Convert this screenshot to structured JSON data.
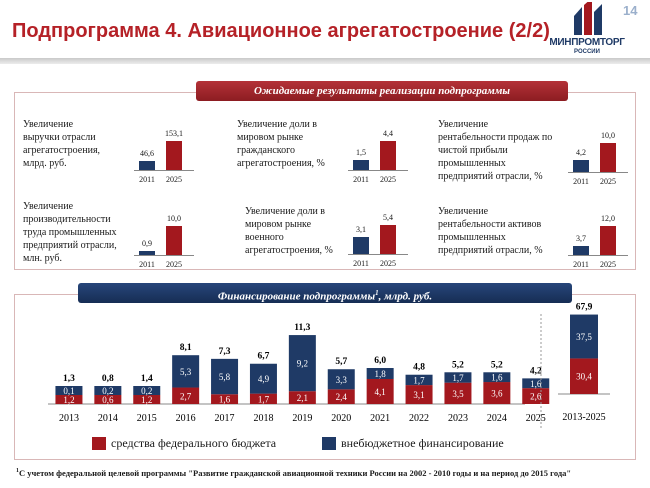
{
  "header": {
    "title": "Подпрограмма 4. Авиационное агрегатостроение (2/2)",
    "page_number": "14",
    "logo_name": "МИНПРОМТОРГ",
    "logo_sub": "РОССИИ"
  },
  "results": {
    "banner": "Ожидаемые результаты реализации подпрограммы",
    "indicators": [
      {
        "label_lines": [
          "Увеличение",
          "выручки отрасли",
          "агрегатостроения,",
          "млрд. руб."
        ],
        "values": [
          46.6,
          153.1
        ],
        "value_labels": [
          "46,6",
          "153,1"
        ],
        "years": [
          "2011",
          "2025"
        ]
      },
      {
        "label_lines": [
          "Увеличение доли в",
          "мировом рынке",
          "гражданского",
          "агрегатостроения, %"
        ],
        "values": [
          1.5,
          4.4
        ],
        "value_labels": [
          "1,5",
          "4,4"
        ],
        "years": [
          "2011",
          "2025"
        ]
      },
      {
        "label_lines": [
          "Увеличение",
          "рентабельности продаж по",
          "чистой прибыли",
          "промышленных",
          "предприятий отрасли, %"
        ],
        "values": [
          4.2,
          10.0
        ],
        "value_labels": [
          "4,2",
          "10,0"
        ],
        "years": [
          "2011",
          "2025"
        ]
      },
      {
        "label_lines": [
          "Увеличение",
          "производительности",
          "труда промышленных",
          "предприятий отрасли,",
          "млн. руб."
        ],
        "values": [
          0.9,
          10.0
        ],
        "value_labels": [
          "0,9",
          "10,0"
        ],
        "years": [
          "2011",
          "2025"
        ]
      },
      {
        "label_lines": [
          "Увеличение доли в",
          "мировом рынке",
          "военного",
          "агрегатостроения, %"
        ],
        "values": [
          3.1,
          5.4
        ],
        "value_labels": [
          "3,1",
          "5,4"
        ],
        "years": [
          "2011",
          "2025"
        ]
      },
      {
        "label_lines": [
          "Увеличение",
          "рентабельности активов",
          "промышленных",
          "предприятий отрасли, %"
        ],
        "values": [
          3.7,
          12.0
        ],
        "value_labels": [
          "3,7",
          "12,0"
        ],
        "years": [
          "2011",
          "2025"
        ]
      }
    ]
  },
  "financing": {
    "banner": "Финансирование подпрограммы",
    "banner_sup": "1",
    "banner_unit": ", млрд. руб."
  },
  "legend": {
    "federal": "средства федерального бюджета",
    "extra": "внебюджетное финансирование"
  },
  "footnote": {
    "sup": "1",
    "text": "С учетом федеральной целевой программы \"Развитие гражданской авиационной техники России на 2002 - 2010 годы и на период до 2015 года\""
  },
  "colors": {
    "federal": "#a3181e",
    "extra": "#1f3a66",
    "accent": "#b52127"
  },
  "chart_data": [
    {
      "type": "bar",
      "stacked": true,
      "categories": [
        "2013",
        "2014",
        "2015",
        "2016",
        "2017",
        "2018",
        "2019",
        "2020",
        "2021",
        "2022",
        "2023",
        "2024",
        "2025"
      ],
      "series": [
        {
          "name": "средства федерального бюджета",
          "values": [
            1.2,
            0.6,
            1.2,
            2.7,
            1.6,
            1.7,
            2.1,
            2.4,
            4.1,
            3.1,
            3.5,
            3.6,
            2.6
          ],
          "labels": [
            "1,2",
            "0,6",
            "1,2",
            "2,7",
            "1,6",
            "1,7",
            "2,1",
            "2,4",
            "4,1",
            "3,1",
            "3,5",
            "3,6",
            "2,6"
          ]
        },
        {
          "name": "внебюджетное финансирование",
          "values": [
            0.1,
            0.2,
            0.2,
            5.3,
            5.8,
            4.9,
            9.2,
            3.3,
            1.8,
            1.7,
            1.7,
            1.6,
            1.6
          ],
          "labels": [
            "0,1",
            "0,2",
            "0,2",
            "5,3",
            "5,8",
            "4,9",
            "9,2",
            "3,3",
            "1,8",
            "1,7",
            "1,7",
            "1,6",
            "1,6"
          ]
        }
      ],
      "totals": [
        1.3,
        0.8,
        1.4,
        8.1,
        7.3,
        6.7,
        11.3,
        5.7,
        6.0,
        4.8,
        5.2,
        5.2,
        4.2
      ],
      "total_labels": [
        "1,3",
        "0,8",
        "1,4",
        "8,1",
        "7,3",
        "6,7",
        "11,3",
        "5,7",
        "6,0",
        "4,8",
        "5,2",
        "5,2",
        "4,2"
      ],
      "title": "Финансирование подпрограммы, млрд. руб."
    },
    {
      "type": "bar",
      "stacked": true,
      "categories": [
        "2013-2025"
      ],
      "series": [
        {
          "name": "средства федерального бюджета",
          "values": [
            30.4
          ],
          "labels": [
            "30,4"
          ]
        },
        {
          "name": "внебюджетное финансирование",
          "values": [
            37.5
          ],
          "labels": [
            "37,5"
          ]
        }
      ],
      "totals": [
        67.9
      ],
      "total_labels": [
        "67,9"
      ]
    }
  ]
}
